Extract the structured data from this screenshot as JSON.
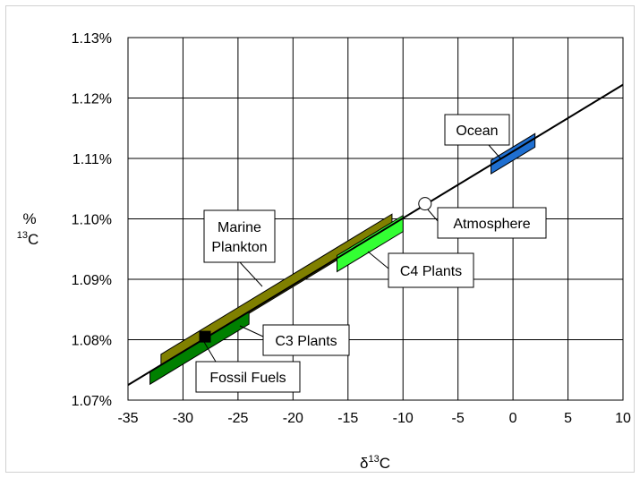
{
  "chart_data": {
    "type": "line",
    "xlabel": "δ",
    "xlabel_sup": "13",
    "xlabel_tail": "C",
    "ylabel": "%",
    "ylabel_sup": "13",
    "ylabel_tail": "C",
    "xlim": [
      -35,
      10
    ],
    "ylim": [
      1.07,
      1.13
    ],
    "x_ticks": [
      -35,
      -30,
      -25,
      -20,
      -15,
      -10,
      -5,
      0,
      5,
      10
    ],
    "x_tick_labels": [
      "-35",
      "-30",
      "-25",
      "-20",
      "-15",
      "-10",
      "-5",
      "0",
      "5",
      "10"
    ],
    "y_ticks": [
      1.07,
      1.08,
      1.09,
      1.1,
      1.11,
      1.12,
      1.13
    ],
    "y_tick_labels": [
      "1.07%",
      "1.08%",
      "1.09%",
      "1.10%",
      "1.11%",
      "1.12%",
      "1.13%"
    ],
    "grid": true,
    "line": {
      "x": [
        -35,
        10
      ],
      "y": [
        1.0725,
        1.1222
      ],
      "color": "#000000"
    },
    "ranges": [
      {
        "name": "Marine Plankton",
        "x_start": -32,
        "x_end": -11,
        "color": "#808000"
      },
      {
        "name": "C4 Plants",
        "x_start": -16,
        "x_end": -10,
        "color": "#33ff33"
      },
      {
        "name": "C3 Plants",
        "x_start": -33,
        "x_end": -24,
        "color": "#008000"
      },
      {
        "name": "Ocean",
        "x_start": -2,
        "x_end": 2,
        "color": "#1f6fd1"
      }
    ],
    "points": [
      {
        "name": "Fossil Fuels",
        "x": -28,
        "y": 1.0805,
        "marker": "square",
        "color": "#000000"
      },
      {
        "name": "Atmosphere",
        "x": -8,
        "y": 1.1025,
        "marker": "circle",
        "color": "#ffffff"
      }
    ],
    "annotations": [
      {
        "text": "Marine Plankton",
        "lines": [
          "Marine",
          "Plankton"
        ]
      },
      {
        "text": "C4 Plants",
        "lines": [
          "C4 Plants"
        ]
      },
      {
        "text": "C3 Plants",
        "lines": [
          "C3 Plants"
        ]
      },
      {
        "text": "Fossil Fuels",
        "lines": [
          "Fossil Fuels"
        ]
      },
      {
        "text": "Atmosphere",
        "lines": [
          "Atmosphere"
        ]
      },
      {
        "text": "Ocean",
        "lines": [
          "Ocean"
        ]
      }
    ]
  }
}
